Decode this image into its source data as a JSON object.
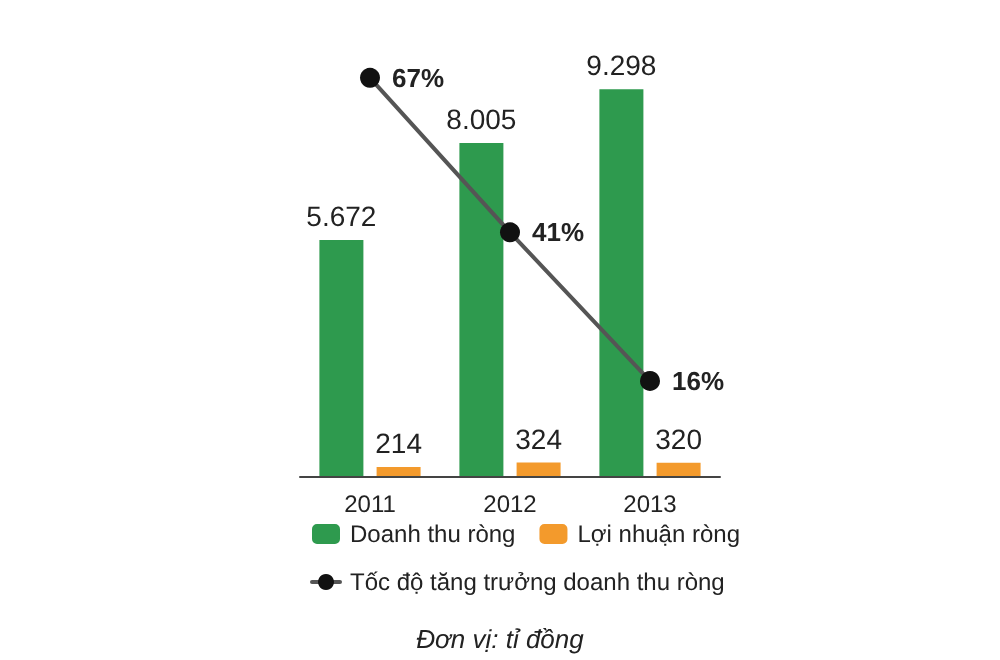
{
  "chart_data": {
    "type": "bar",
    "categories": [
      "2011",
      "2012",
      "2013"
    ],
    "series": [
      {
        "name": "Doanh thu ròng",
        "color": "#2e9a4e",
        "values": [
          5672,
          8005,
          9298
        ],
        "value_labels": [
          "5.672",
          "8.005",
          "9.298"
        ]
      },
      {
        "name": "Lợi nhuận ròng",
        "color": "#f39a2c",
        "values": [
          214,
          324,
          320
        ],
        "value_labels": [
          "214",
          "324",
          "320"
        ]
      },
      {
        "name": "Tốc độ tăng trưởng doanh thu ròng",
        "type": "line",
        "axis": "y2",
        "color": "#555555",
        "values": [
          67,
          41,
          16
        ],
        "value_labels": [
          "67%",
          "41%",
          "16%"
        ]
      }
    ],
    "marker": "circle",
    "legend": "bottom",
    "grid": false,
    "annotations": [
      "Đơn vị: tỉ đồng"
    ]
  }
}
